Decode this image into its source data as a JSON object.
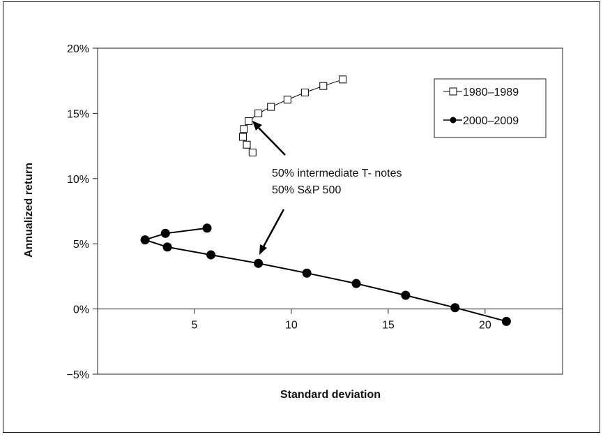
{
  "chart_data": {
    "type": "line",
    "xlabel": "Standard deviation",
    "ylabel": "Annualized return",
    "xlim": [
      0,
      24
    ],
    "ylim": [
      -5,
      20
    ],
    "x_ticks": [
      5,
      10,
      15,
      20
    ],
    "y_ticks": [
      -5,
      0,
      5,
      10,
      15,
      20
    ],
    "x_tick_labels": [
      "5",
      "10",
      "15",
      "20"
    ],
    "y_tick_labels": [
      "−5%",
      "0%",
      "5%",
      "10%",
      "15%",
      "20%"
    ],
    "grid": false,
    "legend_position": "top-right",
    "annotation": {
      "lines": [
        "50% intermediate T- notes",
        "50% S&P 500"
      ]
    },
    "series": [
      {
        "name": "1980–1989",
        "marker": "open-square",
        "color": "#000000",
        "x": [
          8.0,
          7.7,
          7.5,
          7.55,
          7.8,
          8.3,
          8.95,
          9.8,
          10.7,
          11.65,
          12.65
        ],
        "y": [
          12.0,
          12.6,
          13.2,
          13.8,
          14.4,
          15.0,
          15.5,
          16.05,
          16.6,
          17.1,
          17.6
        ]
      },
      {
        "name": "2000–2009",
        "marker": "filled-circle",
        "color": "#000000",
        "x": [
          5.65,
          3.5,
          2.45,
          3.6,
          5.85,
          8.3,
          10.8,
          13.35,
          15.9,
          18.45,
          21.1
        ],
        "y": [
          6.2,
          5.8,
          5.3,
          4.75,
          4.15,
          3.5,
          2.75,
          1.95,
          1.05,
          0.1,
          -0.95
        ]
      }
    ]
  }
}
